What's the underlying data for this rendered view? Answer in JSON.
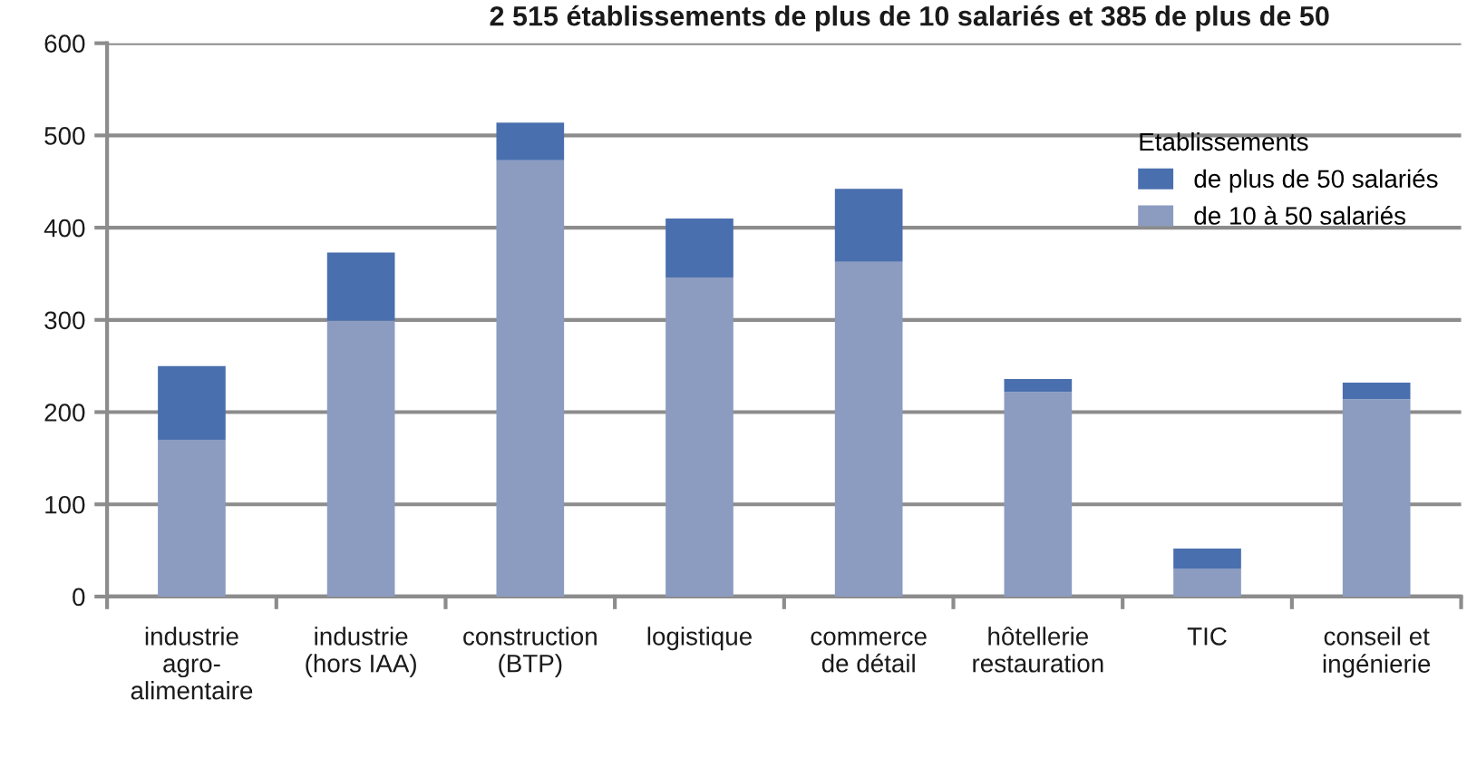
{
  "chart_data": {
    "type": "bar",
    "title": "2 515 établissements de plus de 10 salariés et 385 de plus de 50",
    "categories": [
      "industrie\nagro-\nalimentaire",
      "industrie\n(hors IAA)",
      "construction\n(BTP)",
      "logistique",
      "commerce\nde détail",
      "hôtellerie\nrestauration",
      "TIC",
      "conseil et\ningénierie"
    ],
    "series": [
      {
        "name": "de 10 à 50 salariés",
        "color": "#8c9bc0",
        "values": [
          170,
          299,
          473,
          346,
          363,
          222,
          30,
          214
        ]
      },
      {
        "name": "de plus de 50 salariés",
        "color": "#4a6fae",
        "values": [
          80,
          74,
          41,
          64,
          79,
          14,
          22,
          18
        ]
      }
    ],
    "stacked": true,
    "legend_title": "Etablissements",
    "legend": "top right",
    "ylim": [
      0,
      600
    ],
    "yticks": [
      0,
      100,
      200,
      300,
      400,
      500,
      600
    ],
    "grid": "y"
  }
}
